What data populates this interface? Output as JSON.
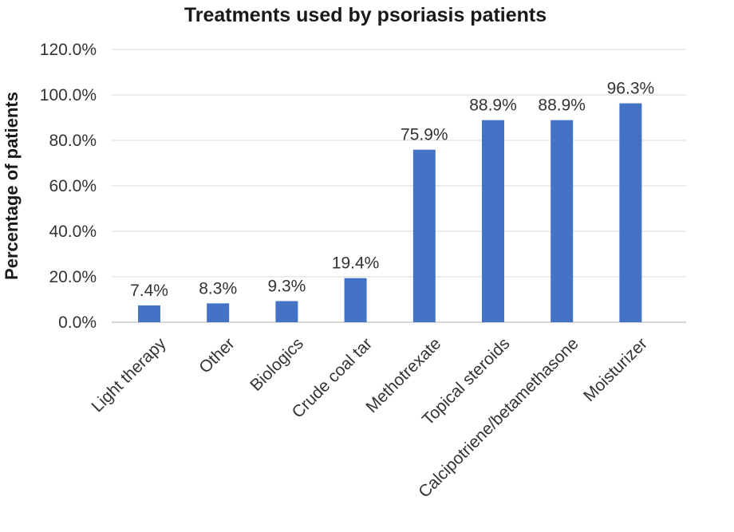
{
  "chart_data": {
    "type": "bar",
    "title": "Treatments used by psoriasis patients",
    "xlabel": "",
    "ylabel": "Percentage of patients",
    "ylim": [
      0,
      120
    ],
    "y_ticks": [
      "0.0%",
      "20.0%",
      "40.0%",
      "60.0%",
      "80.0%",
      "100.0%",
      "120.0%"
    ],
    "categories": [
      "Light therapy",
      "Other",
      "Biologics",
      "Crude coal tar",
      "Methotrexate",
      "Topical steroids",
      "Calcipotriene/betamethasone",
      "Moisturizer"
    ],
    "values": [
      7.4,
      8.3,
      9.3,
      19.4,
      75.9,
      88.9,
      88.9,
      96.3
    ],
    "value_labels": [
      "7.4%",
      "8.3%",
      "9.3%",
      "19.4%",
      "75.9%",
      "88.9%",
      "88.9%",
      "96.3%"
    ],
    "bar_color": "#4472c4",
    "grid": true,
    "legend": "none"
  }
}
